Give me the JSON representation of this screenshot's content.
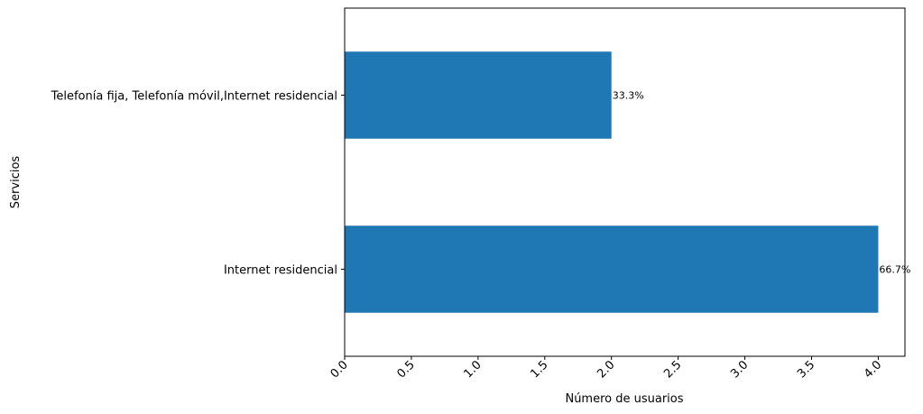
{
  "chart_data": {
    "type": "bar",
    "orientation": "horizontal",
    "categories": [
      "Telefonía fija, Telefonía móvil,Internet residencial",
      "Internet residencial"
    ],
    "values": [
      2,
      4
    ],
    "data_labels": [
      "33.3%",
      "66.7%"
    ],
    "xlabel": "Número de usuarios",
    "ylabel": "Servicios",
    "xlim": [
      0,
      4.2
    ],
    "xticks": [
      "0.0",
      "0.5",
      "1.0",
      "1.5",
      "2.0",
      "2.5",
      "3.0",
      "3.5",
      "4.0"
    ],
    "grid": false,
    "bar_color": "#1f77b4"
  }
}
